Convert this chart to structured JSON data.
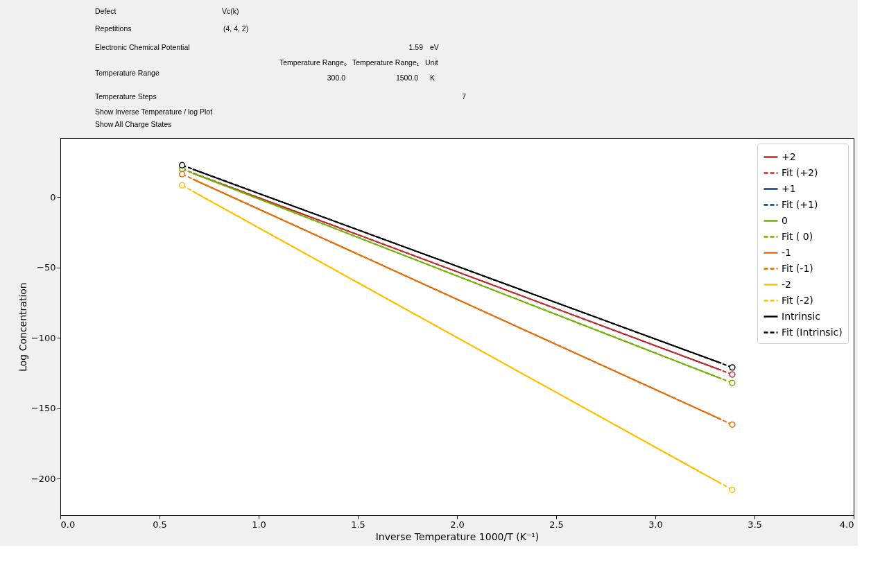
{
  "chart_data": {
    "type": "line",
    "xlabel": "Inverse Temperature 1000/T (K⁻¹)",
    "ylabel": "Log Concentration",
    "xlim": [
      0,
      4
    ],
    "xticks": [
      {
        "value": 0,
        "label": "0.0"
      },
      0.5,
      {
        "value": 1,
        "label": "1.0"
      },
      1.5,
      {
        "value": 2,
        "label": "2.0"
      },
      2.5,
      {
        "value": 3,
        "label": "3.0"
      },
      3.5,
      {
        "value": 4,
        "label": "4.0"
      }
    ],
    "ylim": [
      -226,
      42
    ],
    "yticks": [
      -200,
      -150,
      -100,
      -50,
      0
    ],
    "grid": false,
    "legend": "top right",
    "annotations": [
      "Defect",
      "Vc(k)",
      "Repetitions",
      "(4, 4, 2)",
      "Electronic Chemical Potential",
      "1.59",
      "eV",
      "Temperature Range",
      "Temperature Range₀",
      "Temperature Range₁",
      "Unit",
      "300.0",
      "1500.0",
      "K",
      "Temperature Steps",
      "7",
      "Show Inverse Temperature / log Plot",
      "Show All Charge States"
    ],
    "series": [
      {
        "name": "+2",
        "color": "#c1272d",
        "line_style": "solid",
        "marker": "none",
        "x": [
          0.667,
          3.333
        ],
        "values": [
          17,
          -123
        ]
      },
      {
        "name": "Fit (+2)",
        "color": "#c1272d",
        "line_style": "dashed",
        "marker": "circle",
        "x": [
          0.614,
          3.388
        ],
        "values": [
          20,
          -126
        ]
      },
      {
        "name": "+1",
        "color": "#0d3b7a",
        "line_style": "solid"
      },
      {
        "name": "Fit (+1)",
        "color": "#0d3b7a",
        "line_style": "dashed"
      },
      {
        "name": " 0",
        "color": "#70b000",
        "line_style": "solid",
        "marker": "none",
        "x": [
          0.667,
          3.333
        ],
        "values": [
          17,
          -129
        ]
      },
      {
        "name": "Fit ( 0)",
        "color": "#70b000",
        "line_style": "dashed",
        "marker": "circle",
        "x": [
          0.614,
          3.388
        ],
        "values": [
          20,
          -132
        ]
      },
      {
        "name": "-1",
        "color": "#e56c00",
        "line_style": "solid",
        "marker": "none",
        "x": [
          0.667,
          3.333
        ],
        "values": [
          12.8,
          -158
        ]
      },
      {
        "name": "Fit (-1)",
        "color": "#e56c00",
        "line_style": "dashed",
        "marker": "circle",
        "x": [
          0.614,
          3.388
        ],
        "values": [
          16.3,
          -161.6
        ]
      },
      {
        "name": "-2",
        "color": "#ffc000",
        "line_style": "solid",
        "marker": "none",
        "x": [
          0.667,
          3.333
        ],
        "values": [
          4.1,
          -203.6
        ]
      },
      {
        "name": "Fit (-2)",
        "color": "#ffc000",
        "line_style": "dashed",
        "marker": "circle",
        "x": [
          0.614,
          3.388
        ],
        "values": [
          8.4,
          -207.9
        ]
      },
      {
        "name": "Intrinsic",
        "color": "#000000",
        "line_style": "solid",
        "marker": "none",
        "x": [
          0.667,
          3.333
        ],
        "values": [
          19.8,
          -118
        ]
      },
      {
        "name": "Fit (Intrinsic)",
        "color": "#000000",
        "line_style": "dashed",
        "marker": "circle",
        "x": [
          0.614,
          3.388
        ],
        "values": [
          22.7,
          -121
        ]
      }
    ]
  }
}
